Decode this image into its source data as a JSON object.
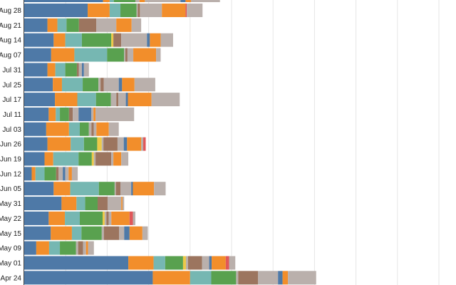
{
  "chart_data": {
    "type": "bar",
    "orientation": "horizontal",
    "stacked": true,
    "grid": true,
    "legend": "none",
    "xlim": [
      0,
      100
    ],
    "colors": [
      "#4e79a7",
      "#f28e2b",
      "#76b7b2",
      "#59a14f",
      "#edc948",
      "#e15759",
      "#9c755f",
      "#bab0ac"
    ],
    "categories": [
      "Aug 28",
      "Aug 21",
      "Aug 14",
      "Aug 07",
      "Jul 31",
      "Jul 25",
      "Jul 17",
      "Jul 11",
      "Jul 03",
      "Jun 26",
      "Jun 19",
      "Jun 12",
      "Jun 05",
      "May 31",
      "May 22",
      "May 15",
      "May 09",
      "May 01",
      "Apr 24"
    ],
    "rows": [
      [
        [
          0,
          15.3
        ],
        [
          1,
          5.3
        ],
        [
          2,
          2.6
        ],
        [
          3,
          3.9
        ],
        [
          7,
          0.3
        ],
        [
          6,
          0.5
        ],
        [
          7,
          5.3
        ],
        [
          1,
          5.7
        ],
        [
          5,
          0.3
        ],
        [
          7,
          3.8
        ]
      ],
      [
        [
          0,
          5.6
        ],
        [
          1,
          2.4
        ],
        [
          2,
          2.2
        ],
        [
          3,
          3.0
        ],
        [
          6,
          4.2
        ],
        [
          7,
          4.8
        ],
        [
          1,
          3.7
        ],
        [
          7,
          2.3
        ]
      ],
      [
        [
          0,
          7.1
        ],
        [
          1,
          2.8
        ],
        [
          2,
          4.0
        ],
        [
          3,
          7.1
        ],
        [
          4,
          0.5
        ],
        [
          6,
          1.9
        ],
        [
          7,
          6.2
        ],
        [
          0,
          0.7
        ],
        [
          1,
          2.6
        ],
        [
          7,
          3.0
        ]
      ],
      [
        [
          0,
          6.5
        ],
        [
          1,
          5.6
        ],
        [
          2,
          7.9
        ],
        [
          3,
          4.1
        ],
        [
          7,
          0.3
        ],
        [
          6,
          0.5
        ],
        [
          7,
          1.4
        ],
        [
          1,
          5.5
        ],
        [
          7,
          1.1
        ]
      ],
      [
        [
          0,
          5.6
        ],
        [
          1,
          1.9
        ],
        [
          2,
          2.4
        ],
        [
          3,
          2.8
        ],
        [
          6,
          0.5
        ],
        [
          7,
          0.7
        ],
        [
          0,
          0.5
        ],
        [
          7,
          1.2
        ]
      ],
      [
        [
          0,
          6.9
        ],
        [
          1,
          2.2
        ],
        [
          2,
          5.0
        ],
        [
          3,
          3.8
        ],
        [
          7,
          0.5
        ],
        [
          6,
          0.8
        ],
        [
          7,
          3.6
        ],
        [
          0,
          0.8
        ],
        [
          1,
          3.0
        ],
        [
          7,
          5.0
        ]
      ],
      [
        [
          0,
          7.4
        ],
        [
          1,
          5.4
        ],
        [
          2,
          4.5
        ],
        [
          3,
          3.6
        ],
        [
          7,
          1.3
        ],
        [
          6,
          0.5
        ],
        [
          7,
          1.8
        ],
        [
          0,
          0.5
        ],
        [
          1,
          5.7
        ],
        [
          7,
          6.8
        ]
      ],
      [
        [
          0,
          5.9
        ],
        [
          1,
          1.7
        ],
        [
          2,
          1.0
        ],
        [
          3,
          2.2
        ],
        [
          6,
          0.9
        ],
        [
          7,
          1.4
        ],
        [
          0,
          3.1
        ],
        [
          7,
          0.5
        ],
        [
          1,
          0.5
        ],
        [
          7,
          9.3
        ]
      ],
      [
        [
          0,
          5.3
        ],
        [
          1,
          5.5
        ],
        [
          2,
          2.6
        ],
        [
          3,
          2.2
        ],
        [
          7,
          0.6
        ],
        [
          6,
          0.6
        ],
        [
          7,
          0.6
        ],
        [
          1,
          3.0
        ],
        [
          7,
          2.4
        ]
      ],
      [
        [
          0,
          5.6
        ],
        [
          1,
          5.6
        ],
        [
          2,
          3.2
        ],
        [
          3,
          3.2
        ],
        [
          4,
          1.1
        ],
        [
          7,
          0.4
        ],
        [
          6,
          3.4
        ],
        [
          7,
          1.5
        ],
        [
          0,
          0.8
        ],
        [
          1,
          3.4
        ],
        [
          7,
          0.5
        ],
        [
          5,
          0.6
        ]
      ],
      [
        [
          0,
          4.9
        ],
        [
          1,
          2.1
        ],
        [
          2,
          6.1
        ],
        [
          3,
          3.2
        ],
        [
          4,
          0.5
        ],
        [
          7,
          0.4
        ],
        [
          6,
          3.8
        ],
        [
          7,
          0.5
        ],
        [
          1,
          1.9
        ],
        [
          7,
          1.7
        ]
      ],
      [
        [
          0,
          1.8
        ],
        [
          1,
          0.9
        ],
        [
          2,
          2.2
        ],
        [
          3,
          2.8
        ],
        [
          6,
          0.6
        ],
        [
          7,
          1.0
        ],
        [
          0,
          0.6
        ],
        [
          7,
          0.8
        ],
        [
          1,
          0.8
        ],
        [
          7,
          1.4
        ]
      ],
      [
        [
          0,
          7.1
        ],
        [
          1,
          4.0
        ],
        [
          2,
          6.9
        ],
        [
          3,
          3.8
        ],
        [
          7,
          0.3
        ],
        [
          6,
          1.1
        ],
        [
          7,
          2.6
        ],
        [
          0,
          0.4
        ],
        [
          1,
          5.1
        ],
        [
          7,
          2.8
        ]
      ],
      [
        [
          0,
          9.0
        ],
        [
          1,
          3.6
        ],
        [
          2,
          2.1
        ],
        [
          3,
          3.0
        ],
        [
          6,
          2.4
        ],
        [
          7,
          3.3
        ],
        [
          1,
          0.3
        ],
        [
          7,
          0.4
        ]
      ],
      [
        [
          0,
          5.9
        ],
        [
          1,
          3.9
        ],
        [
          2,
          3.6
        ],
        [
          3,
          5.5
        ],
        [
          4,
          0.5
        ],
        [
          7,
          0.4
        ],
        [
          6,
          0.6
        ],
        [
          7,
          0.6
        ],
        [
          1,
          4.4
        ],
        [
          5,
          0.8
        ],
        [
          7,
          0.6
        ]
      ],
      [
        [
          0,
          6.4
        ],
        [
          1,
          5.1
        ],
        [
          2,
          2.3
        ],
        [
          3,
          4.9
        ],
        [
          7,
          0.5
        ],
        [
          6,
          3.7
        ],
        [
          7,
          1.2
        ],
        [
          0,
          1.3
        ],
        [
          1,
          3.1
        ],
        [
          7,
          1.3
        ]
      ],
      [
        [
          0,
          2.9
        ],
        [
          1,
          3.1
        ],
        [
          2,
          2.6
        ],
        [
          3,
          3.9
        ],
        [
          7,
          0.5
        ],
        [
          6,
          1.2
        ],
        [
          7,
          0.7
        ],
        [
          1,
          0.5
        ],
        [
          7,
          1.4
        ]
      ],
      [
        [
          0,
          25.1
        ],
        [
          1,
          6.1
        ],
        [
          2,
          2.8
        ],
        [
          3,
          4.3
        ],
        [
          4,
          0.7
        ],
        [
          7,
          0.5
        ],
        [
          6,
          3.4
        ],
        [
          7,
          1.7
        ],
        [
          0,
          0.6
        ],
        [
          1,
          3.4
        ],
        [
          5,
          0.8
        ],
        [
          7,
          1.5
        ]
      ],
      [
        [
          0,
          31.0
        ],
        [
          1,
          9.0
        ],
        [
          2,
          5.1
        ],
        [
          3,
          6.0
        ],
        [
          7,
          0.5
        ],
        [
          6,
          4.8
        ],
        [
          7,
          4.8
        ],
        [
          0,
          1.1
        ],
        [
          1,
          1.3
        ],
        [
          7,
          6.8
        ]
      ]
    ]
  }
}
